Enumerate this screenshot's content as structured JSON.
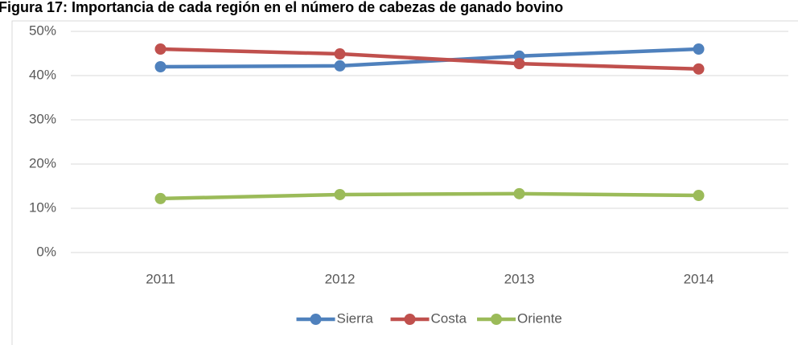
{
  "chart_data": {
    "type": "line",
    "title": "Figura 17: Importancia de cada región en el número de cabezas de ganado bovino",
    "categories": [
      "2011",
      "2012",
      "2013",
      "2014"
    ],
    "series": [
      {
        "name": "Sierra",
        "color": "#4f81bd",
        "values": [
          42,
          42.2,
          44.4,
          46
        ]
      },
      {
        "name": "Costa",
        "color": "#c0504d",
        "values": [
          46,
          44.9,
          42.7,
          41.5
        ]
      },
      {
        "name": "Oriente",
        "color": "#9bbb59",
        "values": [
          12.2,
          13.1,
          13.3,
          12.9
        ]
      }
    ],
    "ylim": [
      0,
      50
    ],
    "yticks": [
      {
        "value": 0,
        "label": "0%"
      },
      {
        "value": 10,
        "label": "10%"
      },
      {
        "value": 20,
        "label": "20%"
      },
      {
        "value": 30,
        "label": "30%"
      },
      {
        "value": 40,
        "label": "40%"
      },
      {
        "value": 50,
        "label": "50%"
      }
    ],
    "grid": true,
    "legend": "bottom"
  }
}
